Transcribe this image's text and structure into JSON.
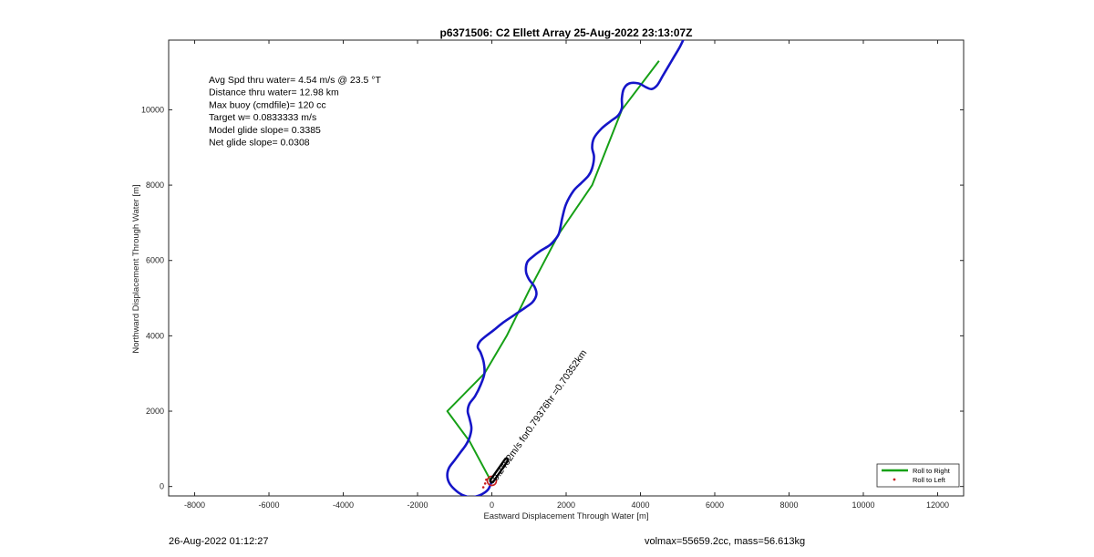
{
  "chart_data": {
    "type": "line",
    "title": "p6371506: C2 Ellett Array 25-Aug-2022 23:13:07Z",
    "xlabel": "Eastward Displacement Through Water [m]",
    "ylabel": "Northward Displacement Through Water [m]",
    "xlim": [
      -8700,
      12700
    ],
    "ylim": [
      -250,
      11850
    ],
    "xticks": [
      -8000,
      -6000,
      -4000,
      -2000,
      0,
      2000,
      4000,
      6000,
      8000,
      10000,
      12000
    ],
    "yticks": [
      0,
      2000,
      4000,
      6000,
      8000,
      10000
    ],
    "grid": false,
    "legend": {
      "placement": "bottom-right",
      "entries": [
        "Roll to Right",
        "Roll to Left"
      ]
    },
    "stats": [
      "Avg Spd thru water=  4.54 m/s @  23.5 °T",
      "Distance thru water= 12.98 km",
      "Max buoy (cmdfile)= 120 cc",
      "Target w= 0.0833333 m/s",
      "Model glide slope= 0.3385",
      "Net glide slope= 0.0308"
    ],
    "annotation": "0.2462m/s for0.79376hr =0.70352km",
    "colors": {
      "track": "#1515c8",
      "roll_right": "#16a016",
      "start_marker": "#c81e1e",
      "current_arrow": "#000000"
    },
    "series": [
      {
        "name": "Roll to Right",
        "x": [
          0,
          -600,
          -1200,
          -200,
          400,
          1000,
          1800,
          2700,
          3500,
          4500
        ],
        "y": [
          100,
          1200,
          2000,
          3000,
          4000,
          5200,
          6700,
          8000,
          10000,
          11300
        ]
      },
      {
        "name": "Roll to Left",
        "x": [
          -150,
          -180,
          -230
        ],
        "y": [
          180,
          80,
          -20
        ]
      }
    ],
    "track": {
      "x": [
        0,
        -100,
        -300,
        -550,
        -800,
        -1000,
        -1150,
        -1200,
        -1150,
        -1000,
        -850,
        -700,
        -600,
        -550,
        -600,
        -650,
        -600,
        -450,
        -300,
        -200,
        -220,
        -300,
        -380,
        -320,
        -150,
        50,
        300,
        600,
        900,
        1100,
        1200,
        1150,
        1000,
        920,
        950,
        1100,
        1300,
        1550,
        1700,
        1800,
        1850,
        1900,
        2000,
        2200,
        2400,
        2600,
        2700,
        2750,
        2700,
        2750,
        2950,
        3200,
        3400,
        3500,
        3500,
        3550,
        3700,
        3950,
        4150,
        4300,
        4450,
        4600,
        4750,
        4900,
        5050,
        5150
      ],
      "y": [
        150,
        -80,
        -220,
        -280,
        -220,
        -80,
        100,
        300,
        500,
        700,
        900,
        1100,
        1300,
        1550,
        1800,
        2000,
        2200,
        2400,
        2700,
        3000,
        3300,
        3550,
        3700,
        3850,
        4000,
        4150,
        4350,
        4550,
        4750,
        4900,
        5100,
        5300,
        5500,
        5700,
        5950,
        6100,
        6250,
        6400,
        6550,
        6700,
        6900,
        7150,
        7500,
        7850,
        8050,
        8250,
        8450,
        8750,
        9000,
        9250,
        9500,
        9700,
        9850,
        10050,
        10300,
        10550,
        10700,
        10700,
        10600,
        10550,
        10650,
        10900,
        11150,
        11400,
        11650,
        11850
      ]
    }
  },
  "footer": {
    "left": "26-Aug-2022 01:12:27",
    "right": "volmax=55659.2cc, mass=56.613kg"
  }
}
